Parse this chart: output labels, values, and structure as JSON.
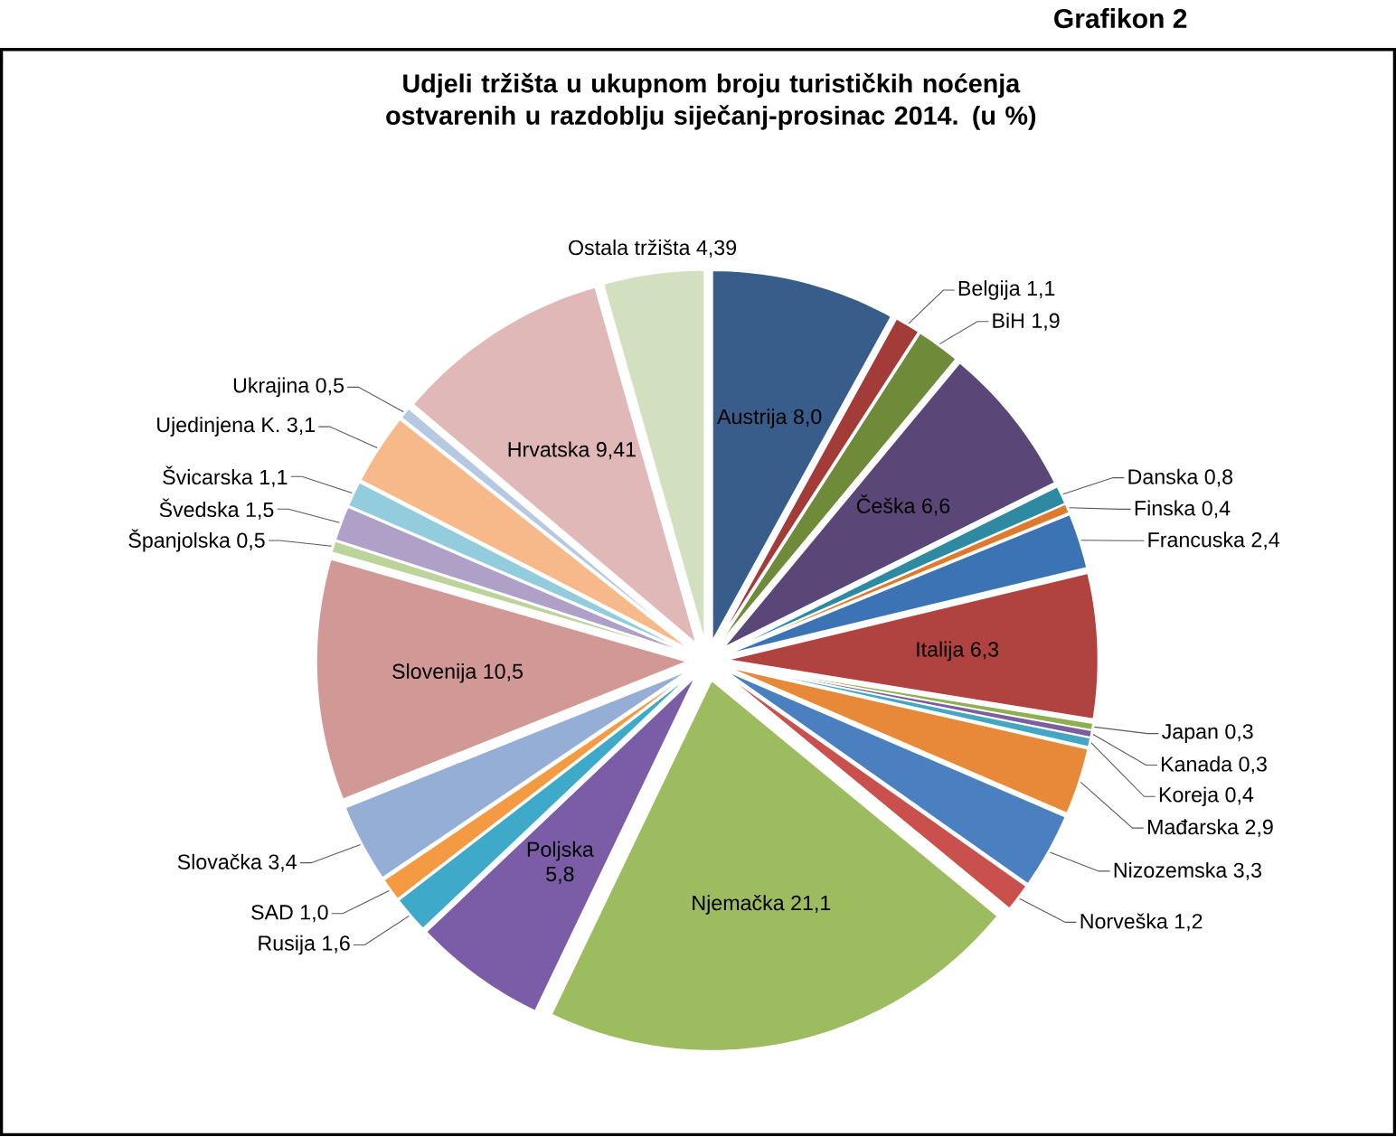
{
  "chart_data": {
    "type": "pie",
    "title": "Udjeli tržišta u ukupnom broju turističkih noćenja ostvarenih u razdoblju siječanj-prosinac 2014. (u %)",
    "annotations": [
      "Grafikon 2"
    ],
    "categories": [
      "Austrija",
      "Belgija",
      "BiH",
      "Češka",
      "Danska",
      "Finska",
      "Francuska",
      "Italija",
      "Japan",
      "Kanada",
      "Koreja",
      "Mađarska",
      "Nizozemska",
      "Norveška",
      "Njemačka",
      "Poljska",
      "Rusija",
      "SAD",
      "Slovačka",
      "Slovenija",
      "Španjolska",
      "Švedska",
      "Švicarska",
      "Ujedinjena K.",
      "Ukrajina",
      "Hrvatska",
      "Ostala tržišta"
    ],
    "values": [
      8.0,
      1.1,
      1.9,
      6.6,
      0.8,
      0.4,
      2.4,
      6.3,
      0.3,
      0.3,
      0.4,
      2.9,
      3.3,
      1.2,
      21.1,
      5.8,
      1.6,
      1.0,
      3.4,
      10.5,
      0.5,
      1.5,
      1.1,
      3.1,
      0.5,
      9.41,
      4.39
    ],
    "value_labels": [
      "8,0",
      "1,1",
      "1,9",
      "6,6",
      "0,8",
      "0,4",
      "2,4",
      "6,3",
      "0,3",
      "0,3",
      "0,4",
      "2,9",
      "3,3",
      "1,2",
      "21,1",
      "5,8",
      "1,6",
      "1,0",
      "3,4",
      "10,5",
      "0,5",
      "1,5",
      "1,1",
      "3,1",
      "0,5",
      "9,41",
      "4,39"
    ],
    "colors": [
      "#385d8a",
      "#a33b38",
      "#6f8b3a",
      "#5b4678",
      "#2e8aa0",
      "#dd7a2c",
      "#3c73b5",
      "#b0423f",
      "#8fb050",
      "#7a5ea0",
      "#44a6c0",
      "#e8893a",
      "#4a7fc0",
      "#c9504d",
      "#9dbb5f",
      "#7b5ca6",
      "#3ea9c8",
      "#f39a43",
      "#94aed6",
      "#d29895",
      "#bcd39a",
      "#afa0c7",
      "#93cddd",
      "#f8b98a",
      "#b6c9e3",
      "#e0b8b7",
      "#d2e0c0"
    ]
  }
}
